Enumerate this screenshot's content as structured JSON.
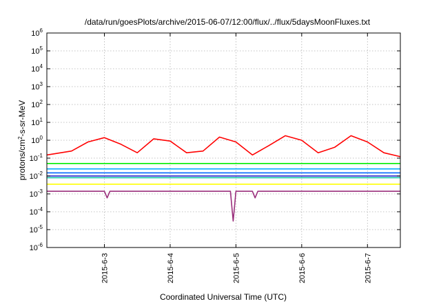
{
  "chart_data": {
    "type": "line",
    "title": "/data/run/goesPlots/archive/2015-06-07/12:00/flux/../flux/5daysMoonFluxes.txt",
    "xlabel": "Coordinated Universal Time (UTC)",
    "ylabel_parts": [
      "protons/cm",
      "2",
      "-s-sr-MeV"
    ],
    "y_scale": "log",
    "ylim": [
      1e-06,
      1000000.0
    ],
    "y_ticks": [
      {
        "base": "10",
        "exp": "-6"
      },
      {
        "base": "10",
        "exp": "-5"
      },
      {
        "base": "10",
        "exp": "-4"
      },
      {
        "base": "10",
        "exp": "-3"
      },
      {
        "base": "10",
        "exp": "-2"
      },
      {
        "base": "10",
        "exp": "-1"
      },
      {
        "base": "10",
        "exp": "0"
      },
      {
        "base": "10",
        "exp": "1"
      },
      {
        "base": "10",
        "exp": "2"
      },
      {
        "base": "10",
        "exp": "3"
      },
      {
        "base": "10",
        "exp": "4"
      },
      {
        "base": "10",
        "exp": "5"
      },
      {
        "base": "10",
        "exp": "6"
      }
    ],
    "xlim": [
      "2015-06-02 03:00",
      "2015-06-07 12:00"
    ],
    "x_ticks": [
      "2015-6-3",
      "2015-6-4",
      "2015-6-5",
      "2015-6-6",
      "2015-6-7"
    ],
    "grid": true,
    "series": [
      {
        "color": "#ff0000",
        "x": [
          "2015-06-02 03:00",
          "2015-06-02 12:00",
          "2015-06-02 18:00",
          "2015-06-03 00:00",
          "2015-06-03 06:00",
          "2015-06-03 12:00",
          "2015-06-03 18:00",
          "2015-06-04 00:00",
          "2015-06-04 06:00",
          "2015-06-04 12:00",
          "2015-06-04 18:00",
          "2015-06-05 00:00",
          "2015-06-05 06:00",
          "2015-06-05 12:00",
          "2015-06-05 18:00",
          "2015-06-06 00:00",
          "2015-06-06 06:00",
          "2015-06-06 12:00",
          "2015-06-06 18:00",
          "2015-06-07 00:00",
          "2015-06-07 06:00",
          "2015-06-07 12:00"
        ],
        "values": [
          0.15,
          0.25,
          0.8,
          1.4,
          0.6,
          0.2,
          1.2,
          0.9,
          0.2,
          0.25,
          1.5,
          0.8,
          0.15,
          0.5,
          1.8,
          1.0,
          0.2,
          0.4,
          1.8,
          0.8,
          0.2,
          0.12
        ]
      },
      {
        "color": "#00ee00",
        "x": [
          "2015-06-02 03:00",
          "2015-06-07 12:00"
        ],
        "values": [
          0.05,
          0.05
        ]
      },
      {
        "color": "#00a8ff",
        "x": [
          "2015-06-02 03:00",
          "2015-06-07 12:00"
        ],
        "values": [
          0.025,
          0.025
        ]
      },
      {
        "color": "#0066ff",
        "x": [
          "2015-06-02 03:00",
          "2015-06-07 12:00"
        ],
        "values": [
          0.015,
          0.015
        ]
      },
      {
        "color": "#00c0a0",
        "x": [
          "2015-06-02 03:00",
          "2015-06-07 12:00"
        ],
        "values": [
          0.008,
          0.008
        ]
      },
      {
        "color": "#1010c8",
        "x": [
          "2015-06-02 03:00",
          "2015-06-07 12:00"
        ],
        "values": [
          0.01,
          0.01
        ]
      },
      {
        "color": "#ffff00",
        "x": [
          "2015-06-02 03:00",
          "2015-06-07 12:00"
        ],
        "values": [
          0.0035,
          0.0035
        ]
      },
      {
        "color": "#9a2f7c",
        "x": [
          "2015-06-02 03:00",
          "2015-06-03 00:00",
          "2015-06-03 01:00",
          "2015-06-03 02:00",
          "2015-06-04 22:00",
          "2015-06-04 23:00",
          "2015-06-05 00:00",
          "2015-06-05 06:00",
          "2015-06-05 07:00",
          "2015-06-05 08:00",
          "2015-06-07 12:00"
        ],
        "values": [
          0.0014,
          0.0014,
          0.0006,
          0.0014,
          0.0014,
          3e-05,
          0.0014,
          0.0014,
          0.0006,
          0.0014,
          0.0014
        ]
      }
    ]
  }
}
